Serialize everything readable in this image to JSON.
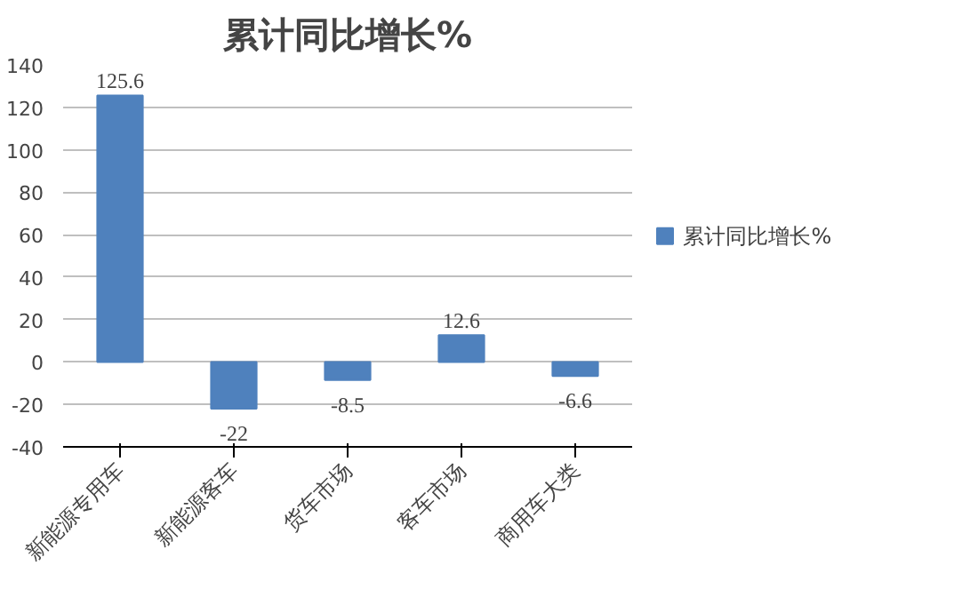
{
  "chart_data": {
    "type": "bar",
    "title": "累计同比增长%",
    "categories": [
      "新能源专用车",
      "新能源客车",
      "货车市场",
      "客车市场",
      "商用车大类"
    ],
    "series": [
      {
        "name": "累计同比增长%",
        "color": "#4f81bd",
        "values": [
          125.6,
          -22,
          -8.5,
          12.6,
          -6.6
        ]
      }
    ],
    "ylim": [
      -40,
      140
    ],
    "yticks": [
      -40,
      -20,
      0,
      20,
      40,
      60,
      80,
      100,
      120,
      140
    ],
    "grid": "y",
    "legend": "right",
    "data_labels": true
  }
}
